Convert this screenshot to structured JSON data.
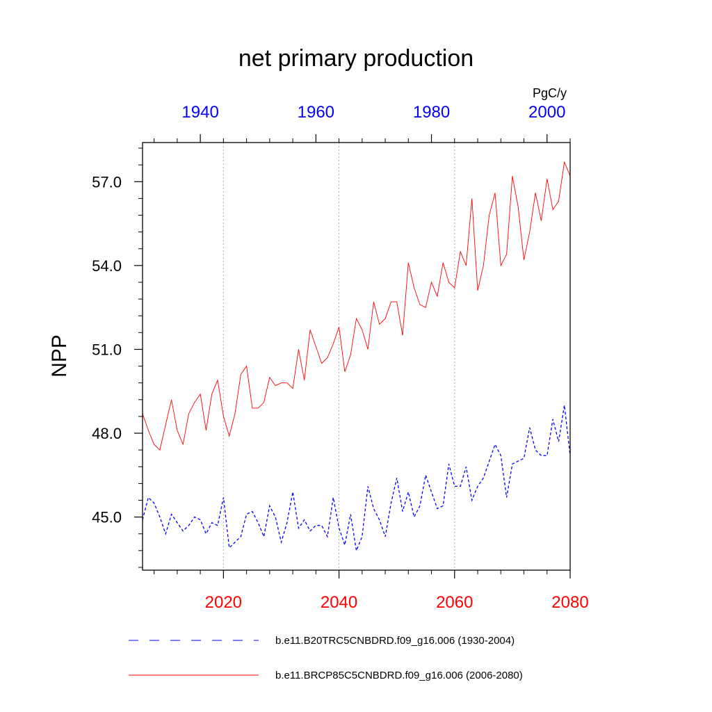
{
  "chart_data": {
    "type": "line",
    "title": "net primary production",
    "ylabel": "NPP",
    "units": "PgC/y",
    "ylim": [
      43.1,
      58.4
    ],
    "yticks": [
      45.0,
      48.0,
      51.0,
      54.0,
      57.0
    ],
    "ytick_labels": [
      "45.0",
      "48.0",
      "51.0",
      "54.0",
      "57.0"
    ],
    "grid": "vertical dotted lines at 2020, 2040, 2060",
    "top_axis": {
      "color": "#0000ff",
      "range": [
        1930,
        2004
      ],
      "ticks": [
        1940,
        1960,
        1980,
        2000
      ],
      "tick_labels": [
        "1940",
        "1960",
        "1980",
        "2000"
      ]
    },
    "bottom_axis": {
      "color": "#ff0000",
      "range": [
        2006,
        2080
      ],
      "ticks": [
        2020,
        2040,
        2060,
        2080
      ],
      "tick_labels": [
        "2020",
        "2040",
        "2060",
        "2080"
      ]
    },
    "legend_position": "bottom",
    "series": [
      {
        "name": "b.e11.B20TRC5CNBDRD.f09_g16.006 (1930-2004)",
        "color": "#0000ff",
        "style": "dashed",
        "axis": "top",
        "x_start": 1930,
        "values": [
          44.9,
          45.7,
          45.5,
          45.0,
          44.4,
          45.1,
          44.8,
          44.5,
          44.7,
          45.0,
          44.9,
          44.4,
          44.8,
          44.7,
          45.7,
          43.9,
          44.1,
          44.3,
          45.1,
          45.2,
          44.8,
          44.3,
          45.4,
          45.0,
          44.1,
          44.8,
          45.9,
          44.6,
          44.9,
          44.5,
          44.7,
          44.7,
          44.3,
          45.7,
          44.6,
          44.0,
          45.1,
          43.8,
          44.3,
          46.1,
          45.3,
          44.9,
          44.3,
          45.5,
          46.4,
          45.2,
          45.9,
          45.0,
          45.4,
          46.5,
          45.9,
          45.3,
          45.4,
          46.9,
          46.1,
          46.1,
          46.8,
          45.6,
          46.1,
          46.4,
          47.0,
          47.6,
          47.2,
          45.7,
          46.9,
          47.0,
          47.1,
          48.2,
          47.4,
          47.2,
          47.2,
          48.5,
          47.7,
          49.0,
          47.2
        ]
      },
      {
        "name": "b.e11.BRCP85C5CNBDRD.f09_g16.006 (2006-2080)",
        "color": "#ff0000",
        "style": "solid",
        "axis": "bottom",
        "x_start": 2006,
        "values": [
          48.7,
          48.1,
          47.6,
          47.4,
          48.3,
          49.2,
          48.1,
          47.6,
          48.7,
          49.1,
          49.4,
          48.1,
          49.4,
          49.9,
          48.6,
          47.9,
          48.7,
          50.1,
          50.4,
          48.9,
          48.9,
          49.1,
          50.0,
          49.7,
          49.8,
          49.8,
          49.6,
          51.0,
          49.9,
          51.7,
          51.1,
          50.5,
          50.7,
          51.2,
          51.8,
          50.2,
          50.8,
          52.1,
          51.7,
          51.0,
          52.7,
          51.9,
          52.1,
          52.7,
          52.7,
          51.5,
          54.1,
          53.2,
          52.6,
          52.5,
          53.4,
          52.9,
          54.1,
          53.4,
          53.2,
          54.5,
          54.0,
          56.4,
          53.1,
          54.0,
          55.8,
          56.6,
          54.0,
          54.4,
          57.2,
          56.1,
          54.2,
          55.2,
          56.6,
          55.6,
          57.1,
          56.0,
          56.3,
          57.7,
          57.2
        ]
      }
    ]
  }
}
